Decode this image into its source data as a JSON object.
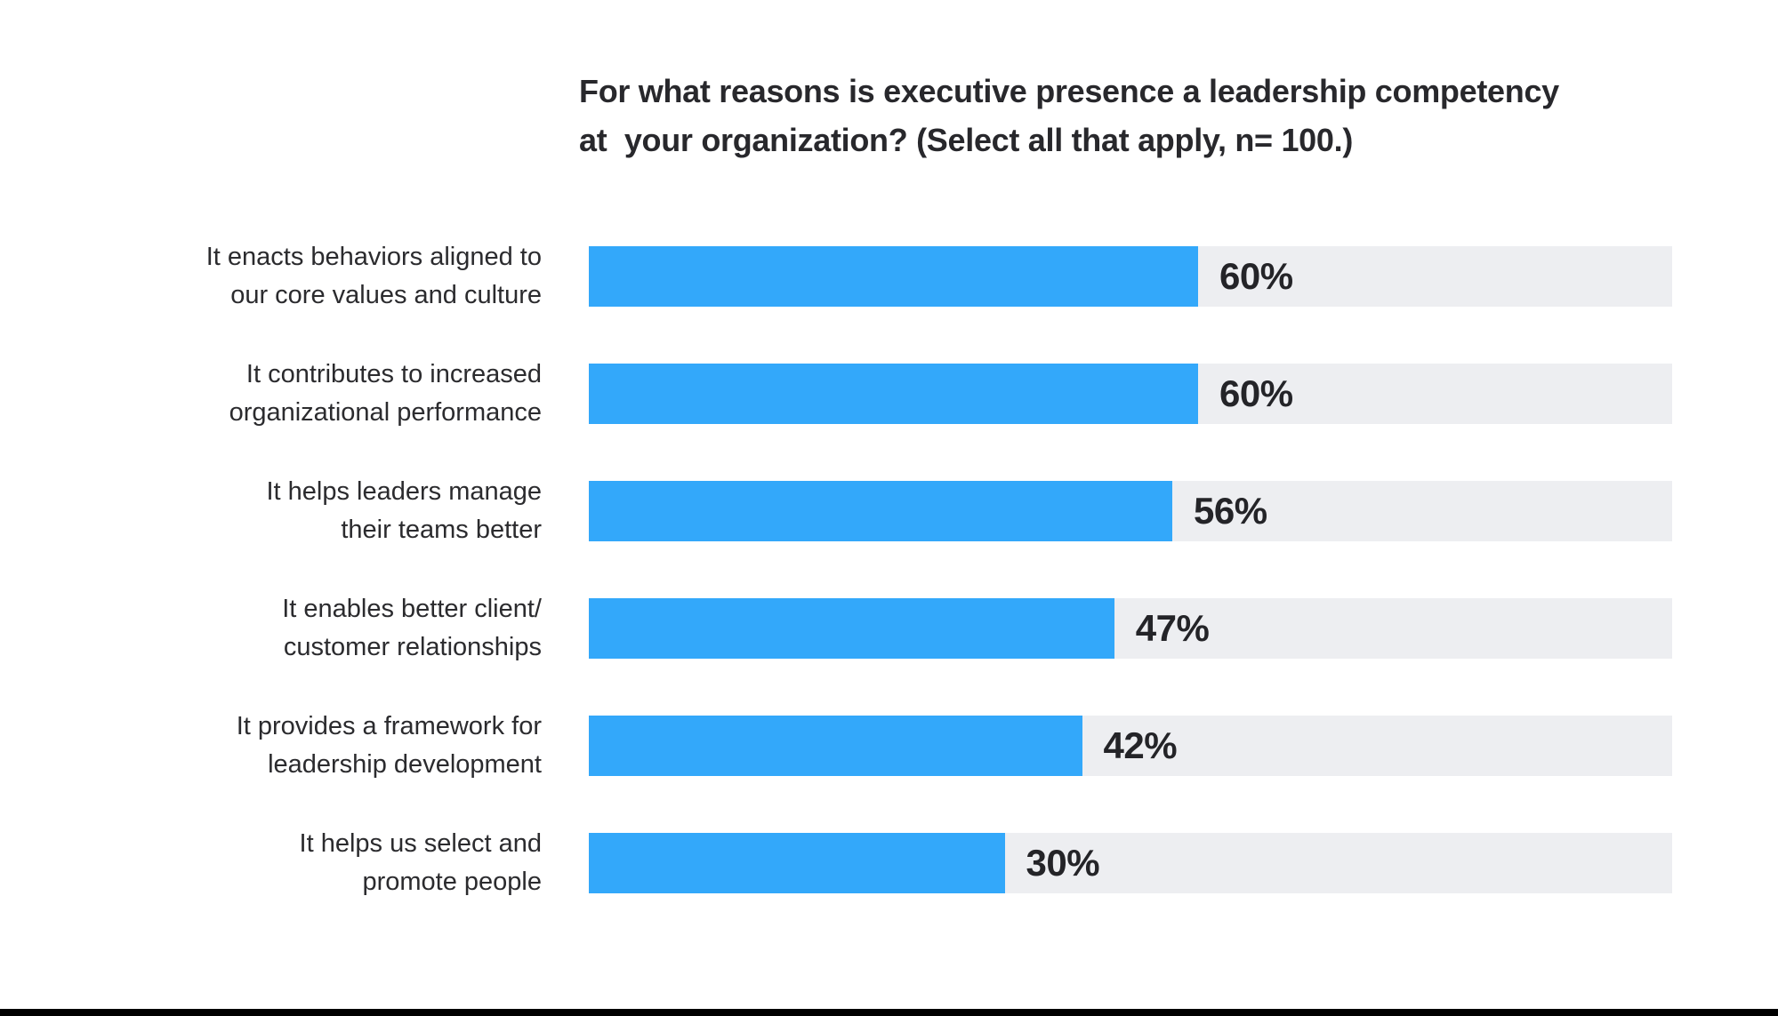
{
  "title": {
    "line1": "For what reasons is executive presence a leadership competency",
    "line2": "at  your organization? (Select all that apply, n= 100.)"
  },
  "colors": {
    "bar": "#33a8fa",
    "track": "#edeef1",
    "text": "#28282c",
    "divider": "#000000"
  },
  "rows": [
    {
      "label": "It enacts behaviors aligned to\nour core values and culture",
      "value": 60,
      "value_label": "60%"
    },
    {
      "label": "It contributes to increased\norganizational performance",
      "value": 60,
      "value_label": "60%"
    },
    {
      "label": "It helps leaders manage\ntheir teams better",
      "value": 56,
      "value_label": "56%"
    },
    {
      "label": "It enables better client/\ncustomer relationships",
      "value": 47,
      "value_label": "47%"
    },
    {
      "label": "It provides a framework for\nleadership development",
      "value": 42,
      "value_label": "42%"
    },
    {
      "label": "It helps us select and\npromote people",
      "value": 30,
      "value_label": "30%"
    }
  ],
  "chart_data": {
    "type": "bar",
    "orientation": "horizontal",
    "title": "For what reasons is executive presence a leadership competency at your organization? (Select all that apply, n= 100.)",
    "categories": [
      "It enacts behaviors aligned to our core values and culture",
      "It contributes to increased organizational performance",
      "It helps leaders manage their teams better",
      "It enables better client/ customer relationships",
      "It provides a framework for leadership development",
      "It helps us select and promote people"
    ],
    "values": [
      60,
      60,
      56,
      47,
      42,
      30
    ],
    "value_labels": [
      "60%",
      "60%",
      "56%",
      "47%",
      "42%",
      "30%"
    ],
    "xlabel": "",
    "ylabel": "",
    "xlim": [
      0,
      100
    ],
    "grid": false,
    "legend": false,
    "bar_color": "#33a8fa",
    "track_color": "#edeef1"
  }
}
